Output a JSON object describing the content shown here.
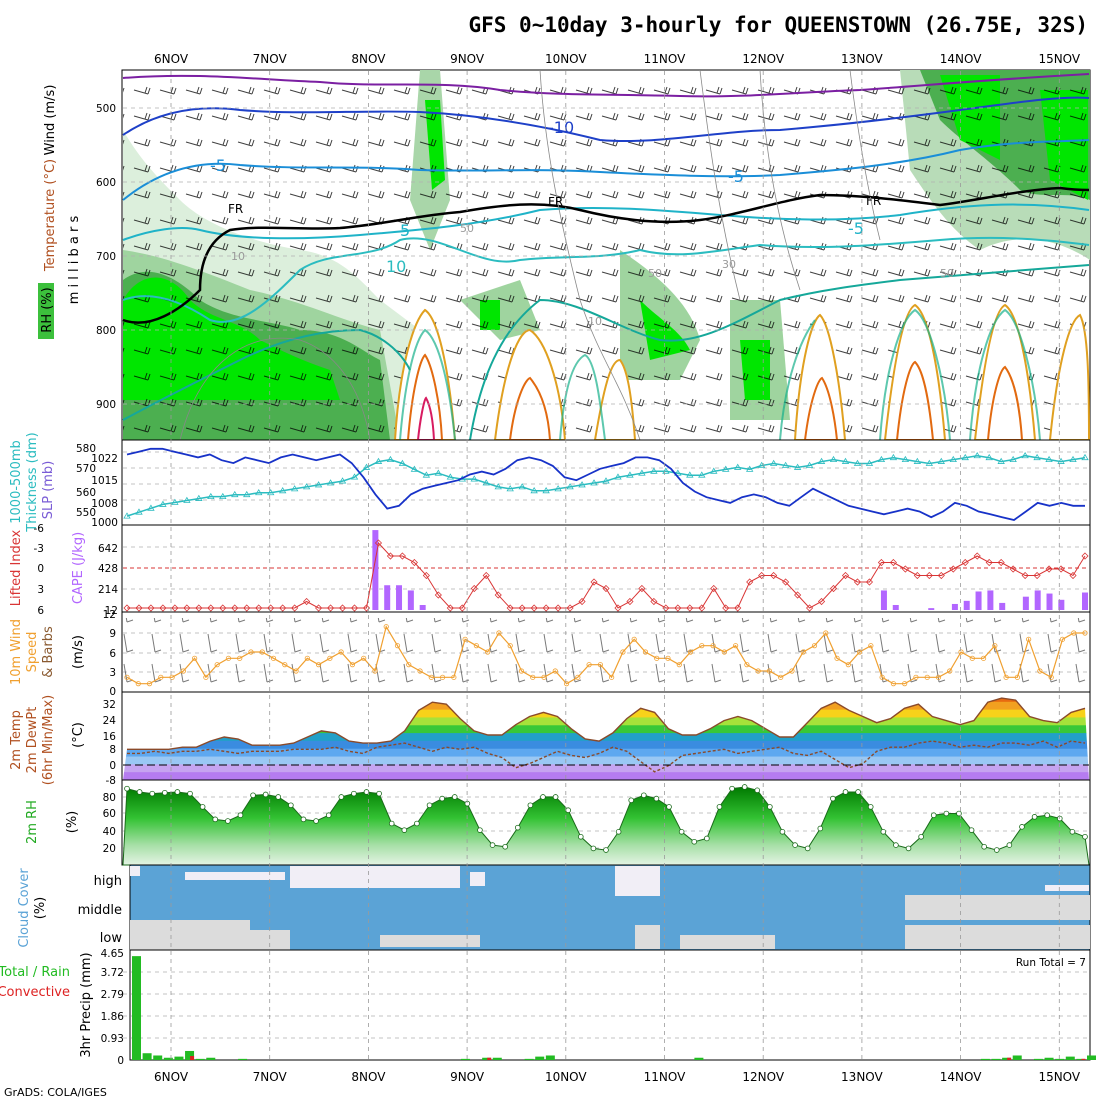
{
  "title": "GFS 0~10day 3-hourly for QUEENSTOWN (26.75E, 32S)",
  "footer": "GrADS: COLA/IGES",
  "dates": [
    "6NOV",
    "7NOV",
    "8NOV",
    "9NOV",
    "10NOV",
    "11NOV",
    "12NOV",
    "13NOV",
    "14NOV",
    "15NOV"
  ],
  "colors": {
    "wind_barb": "#000000",
    "temp_purple": "#7b1fa2",
    "temp_blue": "#1e40c8",
    "temp_cyan": "#1fb3c8",
    "freezing": "#000000",
    "rh_green_bright": "#00e600",
    "rh_green": "#4caf50",
    "rh_pale": "#dcefdc",
    "slp": "#1732c8",
    "thickness": "#2bbcc0",
    "lifted": "#d93535",
    "cape": "#b266ff",
    "wind_speed": "#f0a030",
    "cloud": "#5ba3d6",
    "cloud_gap": "#dcdcdc",
    "precip_total": "#22bb22",
    "precip_conv": "#dd2222"
  },
  "panels": {
    "upper": {
      "ylabel_a": "Wind (m/s)",
      "ylabel_b": "Temperature (°C)",
      "ylabel_c": "m i l l i b a r s",
      "ylabel_d": "RH (%)",
      "yticks": [
        "500",
        "600",
        "700",
        "800",
        "900"
      ],
      "contour_labels": [
        "-10",
        "-5",
        "-5",
        "-5",
        "5",
        "10",
        "FR",
        "FR",
        "FR",
        "50",
        "50",
        "50",
        "30",
        "10",
        "10"
      ]
    },
    "slp": {
      "ylabel_a": "1000-500mb",
      "ylabel_b": "Thickness (dm)",
      "ylabel_c": "SLP (mb)",
      "yticks_left": [
        "580",
        "570",
        "560",
        "550"
      ],
      "yticks_right": [
        "1022",
        "1015",
        "1008",
        "1000"
      ]
    },
    "cape": {
      "ylabel_a": "Lifted Index",
      "ylabel_b": "CAPE (J/kg)",
      "yticks_left": [
        "-6",
        "-3",
        "0",
        "3",
        "6"
      ],
      "yticks_right": [
        "642",
        "428",
        "214",
        "12"
      ]
    },
    "wind10": {
      "ylabel_a": "10m Wind",
      "ylabel_b": "Speed",
      "ylabel_c": "& Barbs",
      "ylabel_d": "(m/s)",
      "yticks": [
        "12",
        "9",
        "6",
        "3",
        "0"
      ]
    },
    "temp2m": {
      "ylabel_a": "2m Temp",
      "ylabel_b": "2m DewPt",
      "ylabel_c": "(6hr Min/Max)",
      "ylabel_d": "(°C)",
      "yticks": [
        "32",
        "24",
        "16",
        "8",
        "0",
        "-8"
      ]
    },
    "rh2m": {
      "ylabel_a": "2m RH",
      "ylabel_b": "(%)",
      "yticks": [
        "80",
        "60",
        "40",
        "20"
      ]
    },
    "cloud": {
      "ylabel_a": "Cloud Cover",
      "ylabel_b": "(%)",
      "levels": [
        "high",
        "middle",
        "low"
      ]
    },
    "precip": {
      "ylabel_a": "Total / Rain",
      "ylabel_b": "Convective",
      "ylabel_c": "3hr Precip (mm)",
      "yticks": [
        "4.65",
        "3.72",
        "2.79",
        "1.86",
        "0.93",
        "0"
      ],
      "run_total": "Run Total = 7"
    }
  },
  "chart_data": [
    {
      "type": "line",
      "name": "SLP",
      "ylim": [
        1000,
        1026
      ],
      "values": [
        1023,
        1024,
        1025,
        1025,
        1024,
        1023,
        1022,
        1023,
        1021,
        1020,
        1022,
        1021,
        1020,
        1022,
        1023,
        1022,
        1021,
        1022,
        1023,
        1020,
        1015,
        1009,
        1004,
        1005,
        1009,
        1011,
        1012,
        1013,
        1014,
        1016,
        1017,
        1016,
        1018,
        1021,
        1022,
        1021,
        1019,
        1015,
        1014,
        1016,
        1018,
        1019,
        1020,
        1022,
        1022,
        1021,
        1018,
        1013,
        1010,
        1008,
        1007,
        1006,
        1008,
        1009,
        1008,
        1006,
        1005,
        1008,
        1011,
        1009,
        1007,
        1005,
        1004,
        1003,
        1002,
        1003,
        1004,
        1003,
        1001,
        1003,
        1006,
        1005,
        1003,
        1002,
        1001,
        1000,
        1003,
        1006,
        1005,
        1006,
        1005,
        1005
      ]
    },
    {
      "type": "line",
      "name": "1000-500mb Thickness",
      "ylim": [
        545,
        583
      ],
      "values": [
        547,
        549,
        551,
        553,
        554,
        555,
        556,
        557,
        557,
        558,
        558,
        559,
        559,
        560,
        561,
        562,
        563,
        564,
        565,
        567,
        572,
        575,
        576,
        574,
        571,
        568,
        569,
        567,
        566,
        566,
        564,
        562,
        561,
        562,
        560,
        560,
        561,
        562,
        563,
        564,
        565,
        567,
        568,
        569,
        570,
        570,
        569,
        568,
        568,
        570,
        571,
        572,
        571,
        573,
        574,
        573,
        572,
        573,
        575,
        576,
        575,
        574,
        574,
        576,
        577,
        576,
        575,
        574,
        575,
        576,
        577,
        578,
        577,
        575,
        576,
        578,
        577,
        576,
        575,
        576,
        577
      ]
    },
    {
      "type": "line",
      "name": "Lifted Index",
      "ylim": [
        6,
        -6
      ],
      "values": [
        6,
        6,
        6,
        6,
        6,
        6,
        6,
        6,
        6,
        6,
        6,
        6,
        6,
        6,
        6,
        5,
        6,
        6,
        6,
        6,
        6,
        -4,
        -2,
        -2,
        -1,
        1,
        4,
        6,
        6,
        3,
        1,
        4,
        6,
        6,
        6,
        6,
        6,
        6,
        5,
        2,
        3,
        6,
        5,
        3,
        5,
        6,
        6,
        6,
        6,
        3,
        6,
        6,
        2,
        1,
        1,
        2,
        4,
        6,
        5,
        3,
        1,
        2,
        2,
        -1,
        -1,
        0,
        1,
        1,
        1,
        0,
        -1,
        -2,
        -1,
        -1,
        0,
        1,
        1,
        0,
        0,
        1,
        -2
      ]
    },
    {
      "type": "bar",
      "name": "CAPE",
      "ylim": [
        12,
        800
      ],
      "values": [
        12,
        12,
        12,
        12,
        12,
        12,
        12,
        12,
        12,
        12,
        12,
        12,
        12,
        12,
        12,
        12,
        12,
        12,
        12,
        12,
        12,
        780,
        250,
        250,
        200,
        60,
        12,
        12,
        12,
        12,
        12,
        12,
        12,
        12,
        12,
        12,
        12,
        12,
        12,
        12,
        12,
        12,
        12,
        12,
        12,
        12,
        12,
        12,
        12,
        12,
        12,
        12,
        12,
        12,
        12,
        12,
        12,
        12,
        12,
        12,
        12,
        12,
        12,
        12,
        200,
        60,
        12,
        12,
        30,
        12,
        70,
        100,
        190,
        200,
        80,
        12,
        140,
        200,
        170,
        110,
        12,
        180
      ]
    },
    {
      "type": "line",
      "name": "10m Wind Speed",
      "ylim": [
        0,
        12
      ],
      "values": [
        2,
        1,
        1,
        2,
        2,
        3,
        5,
        2,
        4,
        5,
        5,
        6,
        6,
        5,
        4,
        3,
        5,
        4,
        5,
        6,
        4,
        5,
        3,
        10,
        7,
        4,
        3,
        2,
        2,
        2,
        8,
        7,
        6,
        9,
        7,
        3,
        2,
        2,
        3,
        1,
        2,
        4,
        4,
        2,
        6,
        8,
        6,
        5,
        5,
        4,
        6,
        7,
        7,
        6,
        7,
        4,
        3,
        3,
        2,
        3,
        6,
        7,
        9,
        5,
        4,
        6,
        7,
        2,
        1,
        1,
        2,
        2,
        2,
        3,
        6,
        5,
        5,
        7,
        2,
        2,
        8,
        3,
        2,
        8,
        9,
        9
      ]
    },
    {
      "type": "area",
      "name": "2m Temp",
      "ylim": [
        -8,
        34
      ],
      "values": [
        7,
        7,
        7,
        7,
        8,
        8,
        11,
        13,
        12,
        9,
        9,
        9,
        10,
        13,
        16,
        15,
        11,
        10,
        10,
        11,
        16,
        26,
        30,
        29,
        22,
        16,
        14,
        14,
        19,
        23,
        25,
        23,
        17,
        12,
        11,
        15,
        22,
        27,
        25,
        17,
        14,
        14,
        17,
        21,
        23,
        21,
        17,
        13,
        13,
        20,
        27,
        30,
        26,
        23,
        20,
        22,
        27,
        29,
        23,
        21,
        19,
        21,
        30,
        32,
        31,
        23,
        21,
        20,
        25,
        27
      ]
    },
    {
      "type": "line",
      "name": "2m DewPt",
      "ylim": [
        -8,
        34
      ],
      "values": [
        5,
        5,
        6,
        5,
        6,
        6,
        7,
        6,
        5,
        6,
        6,
        6,
        7,
        7,
        7,
        8,
        6,
        5,
        8,
        9,
        10,
        8,
        6,
        8,
        7,
        8,
        5,
        3,
        -2,
        0,
        3,
        6,
        4,
        3,
        5,
        8,
        6,
        1,
        -4,
        -1,
        4,
        5,
        6,
        7,
        5,
        6,
        7,
        8,
        5,
        4,
        6,
        2,
        -2,
        0,
        6,
        8,
        8,
        10,
        11,
        10,
        8,
        9,
        8,
        10,
        10,
        9,
        11,
        8,
        11,
        10
      ]
    },
    {
      "type": "area",
      "name": "2m RH",
      "ylim": [
        0,
        100
      ],
      "values": [
        92,
        88,
        86,
        87,
        88,
        86,
        70,
        55,
        53,
        60,
        84,
        85,
        82,
        72,
        55,
        53,
        60,
        82,
        86,
        88,
        86,
        50,
        42,
        50,
        72,
        80,
        82,
        74,
        42,
        24,
        22,
        45,
        72,
        82,
        82,
        66,
        34,
        20,
        18,
        40,
        78,
        84,
        80,
        70,
        40,
        28,
        32,
        70,
        92,
        94,
        90,
        70,
        40,
        24,
        20,
        44,
        80,
        88,
        88,
        70,
        40,
        24,
        20,
        34,
        60,
        62,
        62,
        42,
        22,
        18,
        24,
        46,
        58,
        60,
        56,
        40,
        34
      ]
    },
    {
      "type": "bar",
      "name": "3hr Precip",
      "ylim": [
        0,
        4.65
      ],
      "values": [
        4.6,
        0.3,
        0.2,
        0.1,
        0.15,
        0.4,
        0.05,
        0.1,
        0,
        0,
        0.05,
        0,
        0,
        0,
        0,
        0,
        0,
        0,
        0,
        0,
        0,
        0,
        0,
        0,
        0,
        0,
        0,
        0,
        0,
        0,
        0,
        0.05,
        0,
        0.1,
        0.1,
        0,
        0,
        0.05,
        0.15,
        0.2,
        0,
        0,
        0,
        0,
        0,
        0,
        0,
        0,
        0,
        0,
        0,
        0,
        0,
        0.1,
        0,
        0,
        0,
        0,
        0,
        0,
        0,
        0,
        0,
        0,
        0,
        0,
        0,
        0,
        0,
        0,
        0,
        0,
        0,
        0,
        0,
        0,
        0,
        0,
        0,
        0,
        0.05,
        0.05,
        0.1,
        0.2,
        0,
        0.05,
        0.1,
        0.05,
        0.15,
        0.05,
        0.2
      ]
    }
  ]
}
